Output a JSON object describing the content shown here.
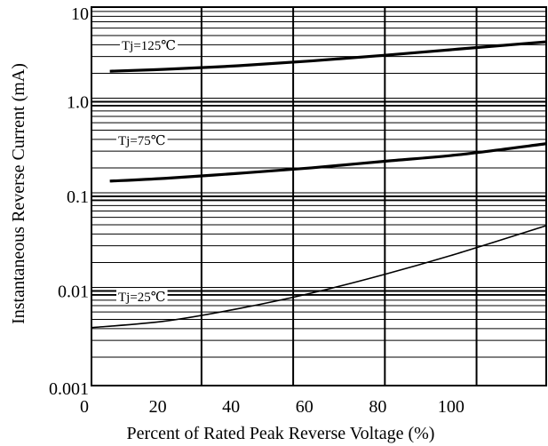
{
  "chart_data": {
    "type": "line",
    "title": "",
    "xlabel": "Percent of Rated Peak Reverse Voltage (%)",
    "ylabel": "Instantaneous Reverse Current (mA)",
    "x_scale": "linear",
    "y_scale": "log",
    "xlim": [
      0,
      124
    ],
    "ylim": [
      0.001,
      10
    ],
    "x_ticks": [
      {
        "value": 0,
        "label": "0"
      },
      {
        "value": 20,
        "label": "20"
      },
      {
        "value": 40,
        "label": "40"
      },
      {
        "value": 60,
        "label": "60"
      },
      {
        "value": 80,
        "label": "80"
      },
      {
        "value": 100,
        "label": "100"
      }
    ],
    "y_ticks": [
      {
        "value": 0.001,
        "label": "0.001"
      },
      {
        "value": 0.01,
        "label": "0.01"
      },
      {
        "value": 0.1,
        "label": "0.1"
      },
      {
        "value": 1,
        "label": "1.0"
      },
      {
        "value": 10,
        "label": "10"
      }
    ],
    "grid": true,
    "x_grid_lines": [
      0,
      30,
      55,
      80,
      105
    ],
    "series": [
      {
        "name": "Tj=125℃",
        "x": [
          5,
          20,
          40,
          60,
          80,
          100,
          124
        ],
        "y": [
          2.1,
          2.2,
          2.4,
          2.7,
          3.1,
          3.6,
          4.3
        ]
      },
      {
        "name": "Tj=75℃",
        "x": [
          5,
          20,
          40,
          60,
          80,
          100,
          124
        ],
        "y": [
          0.145,
          0.155,
          0.175,
          0.2,
          0.235,
          0.275,
          0.36
        ]
      },
      {
        "name": "Tj=25℃",
        "x": [
          0,
          20,
          40,
          60,
          80,
          100,
          124
        ],
        "y": [
          0.0041,
          0.0048,
          0.0065,
          0.0095,
          0.015,
          0.025,
          0.049
        ]
      }
    ],
    "annotations": [
      {
        "text": "Tj=125℃",
        "series": 0
      },
      {
        "text": "Tj=75℃",
        "series": 1
      },
      {
        "text": "Tj=25℃",
        "series": 2
      }
    ]
  }
}
